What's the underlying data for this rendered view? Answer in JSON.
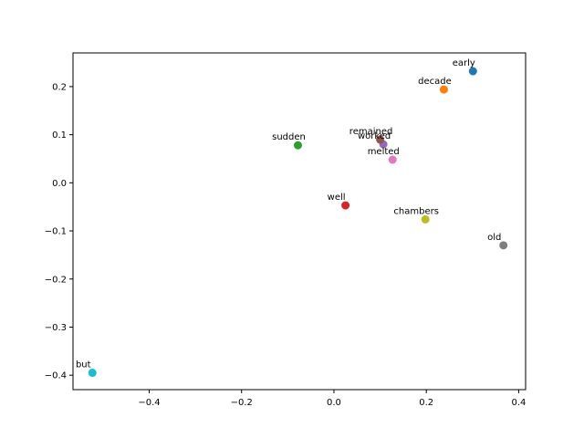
{
  "chart_data": {
    "type": "scatter",
    "title": "",
    "xlabel": "",
    "ylabel": "",
    "xlim": [
      -0.565,
      0.415
    ],
    "ylim": [
      -0.43,
      0.27
    ],
    "grid": false,
    "xticks": [
      {
        "value": -0.4,
        "label": "−0.4"
      },
      {
        "value": -0.2,
        "label": "−0.2"
      },
      {
        "value": 0.0,
        "label": "0.0"
      },
      {
        "value": 0.2,
        "label": "0.2"
      },
      {
        "value": 0.4,
        "label": "0.4"
      }
    ],
    "yticks": [
      {
        "value": -0.4,
        "label": "−0.4"
      },
      {
        "value": -0.3,
        "label": "−0.3"
      },
      {
        "value": -0.2,
        "label": "−0.2"
      },
      {
        "value": -0.1,
        "label": "−0.1"
      },
      {
        "value": 0.0,
        "label": "0.0"
      },
      {
        "value": 0.1,
        "label": "0.1"
      },
      {
        "value": 0.2,
        "label": "0.2"
      }
    ],
    "points": [
      {
        "label": "early",
        "x": 0.301,
        "y": 0.232,
        "color": "#1f77b4"
      },
      {
        "label": "decade",
        "x": 0.238,
        "y": 0.194,
        "color": "#ff7f0e"
      },
      {
        "label": "sudden",
        "x": -0.078,
        "y": 0.078,
        "color": "#2ca02c"
      },
      {
        "label": "well",
        "x": 0.025,
        "y": -0.047,
        "color": "#d62728"
      },
      {
        "label": "worked",
        "x": 0.107,
        "y": 0.08,
        "color": "#9467bd"
      },
      {
        "label": "remained",
        "x": 0.1,
        "y": 0.09,
        "color": "#8c564b"
      },
      {
        "label": "melted",
        "x": 0.127,
        "y": 0.048,
        "color": "#e377c2"
      },
      {
        "label": "old",
        "x": 0.367,
        "y": -0.13,
        "color": "#7f7f7f"
      },
      {
        "label": "chambers",
        "x": 0.198,
        "y": -0.076,
        "color": "#bcbd22"
      },
      {
        "label": "but",
        "x": -0.523,
        "y": -0.395,
        "color": "#17becf"
      }
    ]
  }
}
